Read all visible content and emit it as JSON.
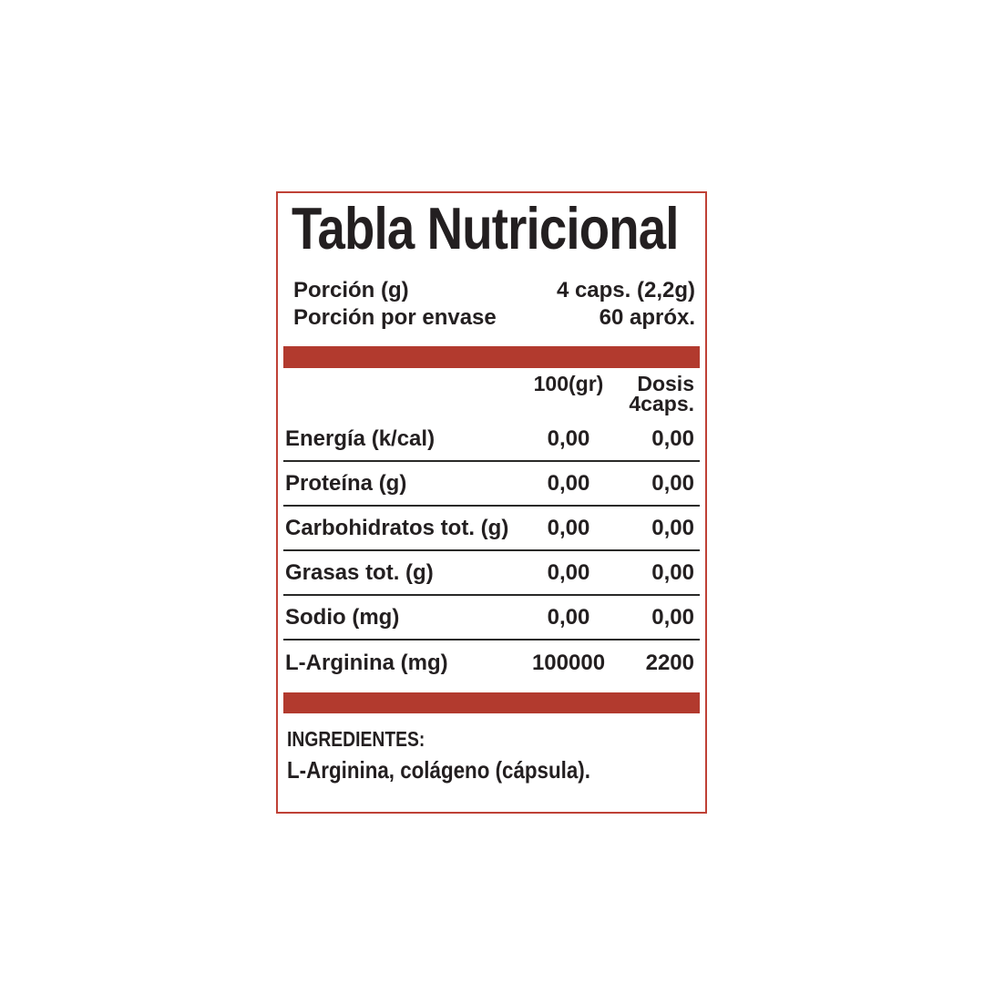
{
  "label_box": {
    "title": "Tabla Nutricional",
    "serving": [
      {
        "name": "Porción (g)",
        "value": "4 caps. (2,2g)"
      },
      {
        "name": "Porción por envase",
        "value": "60 apróx."
      }
    ],
    "table": {
      "col_per100_header": "100(gr)",
      "col_dose_header_line1": "Dosis",
      "col_dose_header_line2": "4caps.",
      "rows": [
        {
          "name": "Energía (k/cal)",
          "per100": "0,00",
          "dose": "0,00"
        },
        {
          "name": "Proteína (g)",
          "per100": "0,00",
          "dose": "0,00"
        },
        {
          "name": "Carbohidratos tot. (g)",
          "per100": "0,00",
          "dose": "0,00"
        },
        {
          "name": "Grasas tot. (g)",
          "per100": "0,00",
          "dose": "0,00"
        },
        {
          "name": "Sodio (mg)",
          "per100": "0,00",
          "dose": "0,00"
        },
        {
          "name": "L-Arginina (mg)",
          "per100": "100000",
          "dose": "2200"
        }
      ]
    },
    "ingredients": {
      "heading": "INGREDIENTES:",
      "text": "L-Arginina, colágeno (cápsula)."
    },
    "colors": {
      "accent_red": "#b23a2e",
      "border_red": "#bf4136",
      "text": "#231f20",
      "divider": "#2a2a28",
      "background": "#ffffff"
    }
  }
}
